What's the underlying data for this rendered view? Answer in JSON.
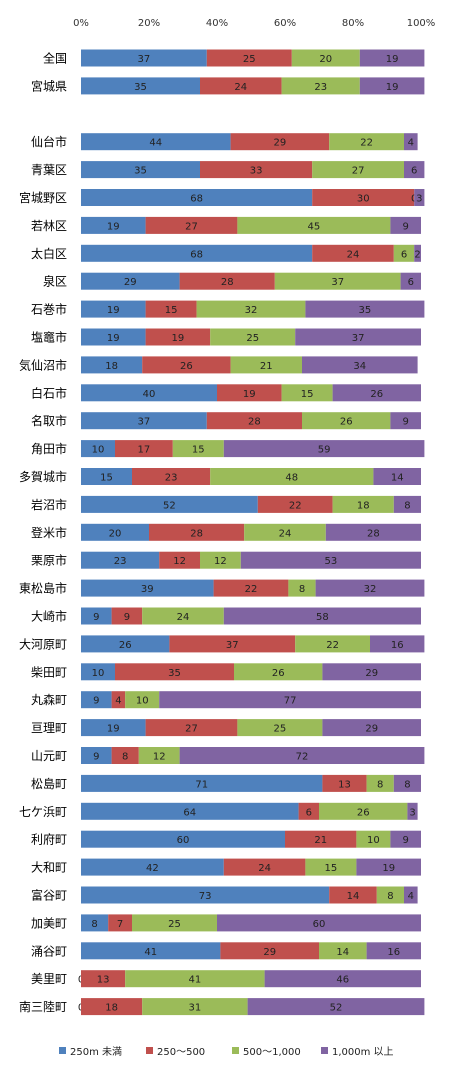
{
  "chart_data": {
    "type": "bar",
    "orientation": "horizontal",
    "stacked": "percent",
    "xlim": [
      0,
      100
    ],
    "x_ticks": [
      "0%",
      "20%",
      "40%",
      "60%",
      "80%",
      "100%"
    ],
    "grid": false,
    "legend_position": "bottom",
    "colors": [
      "#4f81bd",
      "#c0504d",
      "#9bbb59",
      "#8064a2"
    ],
    "categories": [
      "全国",
      "宮城県",
      "",
      "仙台市",
      "青葉区",
      "宮城野区",
      "若林区",
      "太白区",
      "泉区",
      "石巻市",
      "塩竈市",
      "気仙沼市",
      "白石市",
      "名取市",
      "角田市",
      "多賀城市",
      "岩沼市",
      "登米市",
      "栗原市",
      "東松島市",
      "大崎市",
      "大河原町",
      "柴田町",
      "丸森町",
      "亘理町",
      "山元町",
      "松島町",
      "七ケ浜町",
      "利府町",
      "大和町",
      "富谷町",
      "加美町",
      "涌谷町",
      "美里町",
      "南三陸町"
    ],
    "series": [
      {
        "name": "250m 未満",
        "values": [
          37,
          35,
          null,
          44,
          35,
          68,
          19,
          68,
          29,
          19,
          19,
          18,
          40,
          37,
          10,
          15,
          52,
          20,
          23,
          39,
          9,
          26,
          10,
          9,
          19,
          9,
          71,
          64,
          60,
          42,
          73,
          8,
          41,
          0,
          0
        ]
      },
      {
        "name": "250〜500",
        "values": [
          25,
          24,
          null,
          29,
          33,
          30,
          27,
          24,
          28,
          15,
          19,
          26,
          19,
          28,
          17,
          23,
          22,
          28,
          12,
          22,
          9,
          37,
          35,
          4,
          27,
          8,
          13,
          6,
          21,
          24,
          14,
          7,
          29,
          13,
          18
        ]
      },
      {
        "name": "500〜1,000",
        "values": [
          20,
          23,
          null,
          22,
          27,
          0,
          45,
          6,
          37,
          32,
          25,
          21,
          15,
          26,
          15,
          48,
          18,
          24,
          12,
          8,
          24,
          22,
          26,
          10,
          25,
          12,
          8,
          26,
          10,
          15,
          8,
          25,
          14,
          41,
          31
        ]
      },
      {
        "name": "1,000m 以上",
        "values": [
          19,
          19,
          null,
          4,
          6,
          3,
          9,
          2,
          6,
          35,
          37,
          34,
          26,
          9,
          59,
          14,
          8,
          28,
          53,
          32,
          58,
          16,
          29,
          77,
          29,
          72,
          8,
          3,
          9,
          19,
          4,
          60,
          16,
          46,
          52
        ]
      }
    ]
  }
}
